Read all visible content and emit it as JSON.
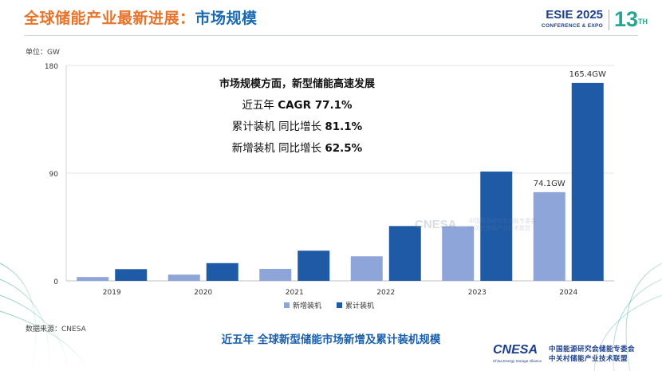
{
  "header": {
    "title_part1": "全球储能产业最新进展：",
    "title_part2": "市场规模",
    "brand_name": "ESIE 2025",
    "brand_sub": "CONFERENCE & EXPO",
    "brand_number": "13",
    "brand_number_sup": "TH"
  },
  "colors": {
    "title_orange": "#e8732a",
    "title_blue": "#1a6ab3",
    "new_install": "#8ea5d9",
    "cumulative": "#1f5aa6",
    "accent_green": "#2aa58e"
  },
  "callout": {
    "headline": "市场规模方面，新型储能高速发展",
    "line1_label": "近五年 ",
    "line1_value": "CAGR 77.1%",
    "line2_label": "累计装机 同比增长 ",
    "line2_value": "81.1%",
    "line3_label": "新增装机 同比增长 ",
    "line3_value": "62.5%"
  },
  "footer": {
    "source": "数据来源：CNESA",
    "subtitle": "近五年 全球新型储能市场新增及累计装机规模",
    "watermark": "CNESA",
    "watermark_line1": "中国能源研究会储能专委会",
    "watermark_line2": "中关村储能产业技术联盟",
    "logo_text": "CNESA",
    "logo_sub": "China Energy Storage Alliance",
    "org_line1": "中国能源研究会储能专委会",
    "org_line2": "中关村储能产业技术联盟"
  },
  "chart_data": {
    "type": "bar",
    "unit_label": "单位：GW",
    "categories": [
      "2019",
      "2020",
      "2021",
      "2022",
      "2023",
      "2024"
    ],
    "series": [
      {
        "name": "新增装机",
        "values": [
          3.2,
          5.2,
          10.0,
          20.5,
          45.6,
          74.1
        ]
      },
      {
        "name": "累计装机",
        "values": [
          9.8,
          14.8,
          25.2,
          45.8,
          91.3,
          165.4
        ]
      }
    ],
    "data_labels": [
      {
        "series": "新增装机",
        "category": "2024",
        "text": "74.1GW"
      },
      {
        "series": "累计装机",
        "category": "2024",
        "text": "165.4GW"
      }
    ],
    "ylim": [
      0,
      180
    ],
    "yticks": [
      "0",
      "90",
      "180"
    ],
    "legend_position": "bottom",
    "xlabel": "",
    "ylabel": ""
  }
}
